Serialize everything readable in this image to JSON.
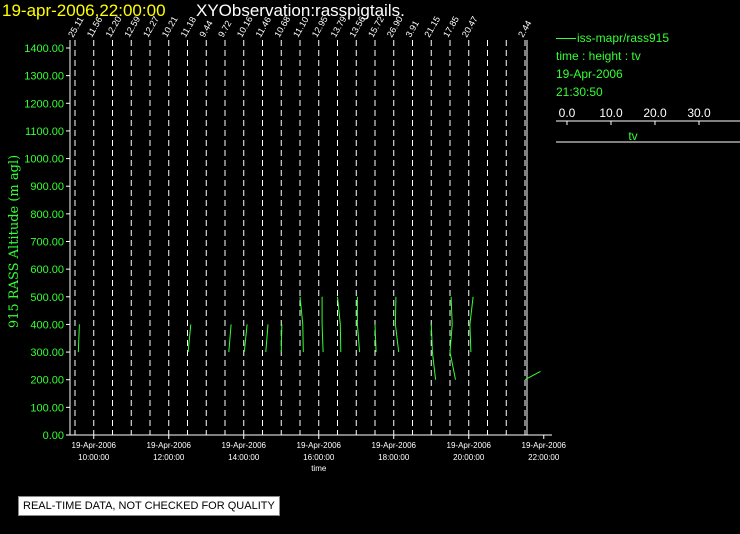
{
  "header": {
    "title": "19-apr-2006,22:00:00",
    "subtitle": "XYObservation:rasspigtails."
  },
  "legend": {
    "series_label": "iss-mapr/rass915",
    "variables": "time : height : tv",
    "date": "19-Apr-2006",
    "time": "21:30:50",
    "scale_ticks": [
      "0.0",
      "10.0",
      "20.0",
      "30.0"
    ],
    "scale_label": "tv"
  },
  "footer_note": "REAL-TIME DATA, NOT CHECKED FOR QUALITY",
  "colors": {
    "background": "#000000",
    "axis": "#ffffff",
    "data": "#33ff33",
    "title": "#ffff00"
  },
  "chart_data": {
    "type": "line",
    "ylabel": "915 RASS Altitude (m agl)",
    "xlabel": "time",
    "ylim": [
      0,
      1400
    ],
    "xlim_hours": [
      9.25,
      23.0
    ],
    "y_ticks": [
      "0.00",
      "100.00",
      "200.00",
      "300.00",
      "400.00",
      "500.00",
      "600.00",
      "700.00",
      "800.00",
      "900.00",
      "1000.00",
      "1100.00",
      "1200.00",
      "1300.00",
      "1400.00"
    ],
    "x_ticks": [
      {
        "date": "19-Apr-2006",
        "time": "10:00:00"
      },
      {
        "date": "19-Apr-2006",
        "time": "12:00:00"
      },
      {
        "date": "19-Apr-2006",
        "time": "14:00:00"
      },
      {
        "date": "19-Apr-2006",
        "time": "16:00:00"
      },
      {
        "date": "19-Apr-2006",
        "time": "18:00:00"
      },
      {
        "date": "19-Apr-2006",
        "time": "20:00:00"
      },
      {
        "date": "19-Apr-2006",
        "time": "22:00:00"
      }
    ],
    "profiles": [
      {
        "time": "09:30",
        "label": "25.11",
        "points": [
          [
            300,
            6
          ],
          [
            400,
            8
          ]
        ]
      },
      {
        "time": "10:00",
        "label": "11.56",
        "points": []
      },
      {
        "time": "10:30",
        "label": "12.20",
        "points": []
      },
      {
        "time": "11:00",
        "label": "12.59",
        "points": []
      },
      {
        "time": "11:30",
        "label": "12.27",
        "points": []
      },
      {
        "time": "12:00",
        "label": "10.21",
        "points": []
      },
      {
        "time": "12:30",
        "label": "11.18",
        "points": [
          [
            300,
            1
          ],
          [
            400,
            6
          ]
        ]
      },
      {
        "time": "13:00",
        "label": "9.44",
        "points": []
      },
      {
        "time": "13:30",
        "label": "9.72",
        "points": [
          [
            300,
            7
          ],
          [
            400,
            11
          ]
        ]
      },
      {
        "time": "14:00",
        "label": "10.16",
        "points": [
          [
            300,
            1
          ],
          [
            400,
            6
          ]
        ]
      },
      {
        "time": "14:30",
        "label": "11.46",
        "points": [
          [
            300,
            6
          ],
          [
            400,
            10
          ]
        ]
      },
      {
        "time": "15:00",
        "label": "10.68",
        "points": [
          [
            300,
            0
          ],
          [
            400,
            1
          ]
        ]
      },
      {
        "time": "15:30",
        "label": "11.10",
        "points": [
          [
            300,
            6
          ],
          [
            400,
            5
          ],
          [
            500,
            0
          ]
        ]
      },
      {
        "time": "16:00",
        "label": "12.95",
        "points": [
          [
            300,
            8
          ],
          [
            400,
            6
          ],
          [
            500,
            6
          ]
        ]
      },
      {
        "time": "16:30",
        "label": "13.79",
        "points": [
          [
            300,
            6
          ],
          [
            400,
            5
          ],
          [
            500,
            0
          ]
        ]
      },
      {
        "time": "17:00",
        "label": "13.56",
        "points": [
          [
            300,
            6
          ],
          [
            400,
            2
          ],
          [
            500,
            2
          ]
        ]
      },
      {
        "time": "17:30",
        "label": "15.72",
        "points": [
          [
            300,
            2
          ],
          [
            400,
            0
          ]
        ]
      },
      {
        "time": "18:00",
        "label": "26.90",
        "points": [
          [
            300,
            9
          ],
          [
            400,
            3
          ],
          [
            500,
            4
          ]
        ]
      },
      {
        "time": "18:30",
        "label": "3.91",
        "points": []
      },
      {
        "time": "19:00",
        "label": "21.15",
        "points": [
          [
            200,
            8
          ],
          [
            300,
            2
          ],
          [
            400,
            0
          ]
        ]
      },
      {
        "time": "19:30",
        "label": "17.85",
        "points": [
          [
            200,
            10
          ],
          [
            300,
            0
          ],
          [
            400,
            4
          ],
          [
            500,
            2
          ]
        ]
      },
      {
        "time": "20:00",
        "label": "20.47",
        "points": [
          [
            300,
            4
          ],
          [
            400,
            2
          ],
          [
            500,
            8
          ]
        ]
      },
      {
        "time": "20:30",
        "label": "",
        "points": []
      },
      {
        "time": "21:00",
        "label": "",
        "points": []
      },
      {
        "time": "21:30",
        "label": "2.44",
        "points": [
          [
            200,
            0
          ],
          [
            230,
            28
          ]
        ]
      }
    ]
  }
}
